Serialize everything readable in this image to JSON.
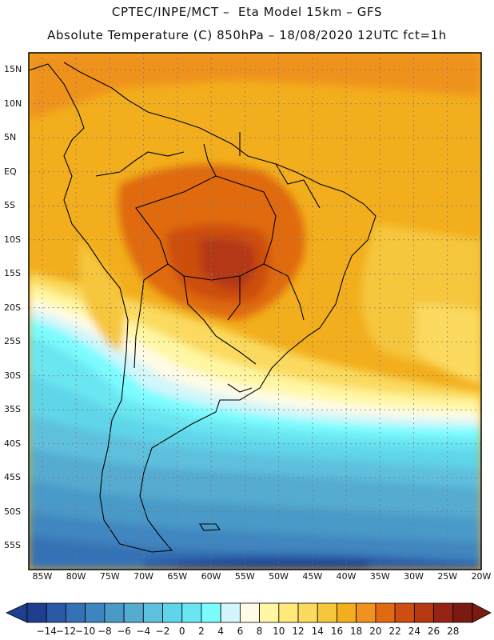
{
  "header": {
    "line1": "CPTEC/INPE/MCT –  Eta Model 15km – GFS",
    "line2": "Absolute Temperature (C) 850hPa – 18/08/2020 12UTC fct=1h"
  },
  "map": {
    "lat_labels": [
      "15N",
      "10N",
      "5N",
      "EQ",
      "5S",
      "10S",
      "15S",
      "20S",
      "25S",
      "30S",
      "35S",
      "40S",
      "45S",
      "50S",
      "55S"
    ],
    "lon_labels": [
      "85W",
      "80W",
      "75W",
      "70W",
      "65W",
      "60W",
      "55W",
      "50W",
      "45W",
      "40W",
      "35W",
      "30W",
      "25W",
      "20W"
    ],
    "lat_values": [
      15,
      10,
      5,
      0,
      -5,
      -10,
      -15,
      -20,
      -25,
      -30,
      -35,
      -40,
      -45,
      -50,
      -55
    ],
    "lon_values": [
      -85,
      -80,
      -75,
      -70,
      -65,
      -60,
      -55,
      -50,
      -45,
      -40,
      -35,
      -30,
      -25,
      -20
    ],
    "region": "South America",
    "field": "temperature_850hPa"
  },
  "colorbar": {
    "labels": [
      "-14",
      "-12",
      "-10",
      "-8",
      "-6",
      "-4",
      "-2",
      "0",
      "2",
      "4",
      "6",
      "8",
      "10",
      "12",
      "14",
      "16",
      "18",
      "20",
      "22",
      "24",
      "26",
      "28"
    ],
    "colors": [
      "#1e3f8f",
      "#2a5aa6",
      "#3572b5",
      "#3f86c0",
      "#4a9ac8",
      "#55abd0",
      "#5ec0de",
      "#5ed5ea",
      "#6ae6f2",
      "#7cfcff",
      "#d2f6fb",
      "#fffbe6",
      "#fff7a3",
      "#ffe97a",
      "#fbda5e",
      "#f6c63c",
      "#f2ae1c",
      "#ef921f",
      "#e06a10",
      "#cd4e10",
      "#b43812",
      "#962414",
      "#7a1a10"
    ],
    "unit": "C"
  }
}
